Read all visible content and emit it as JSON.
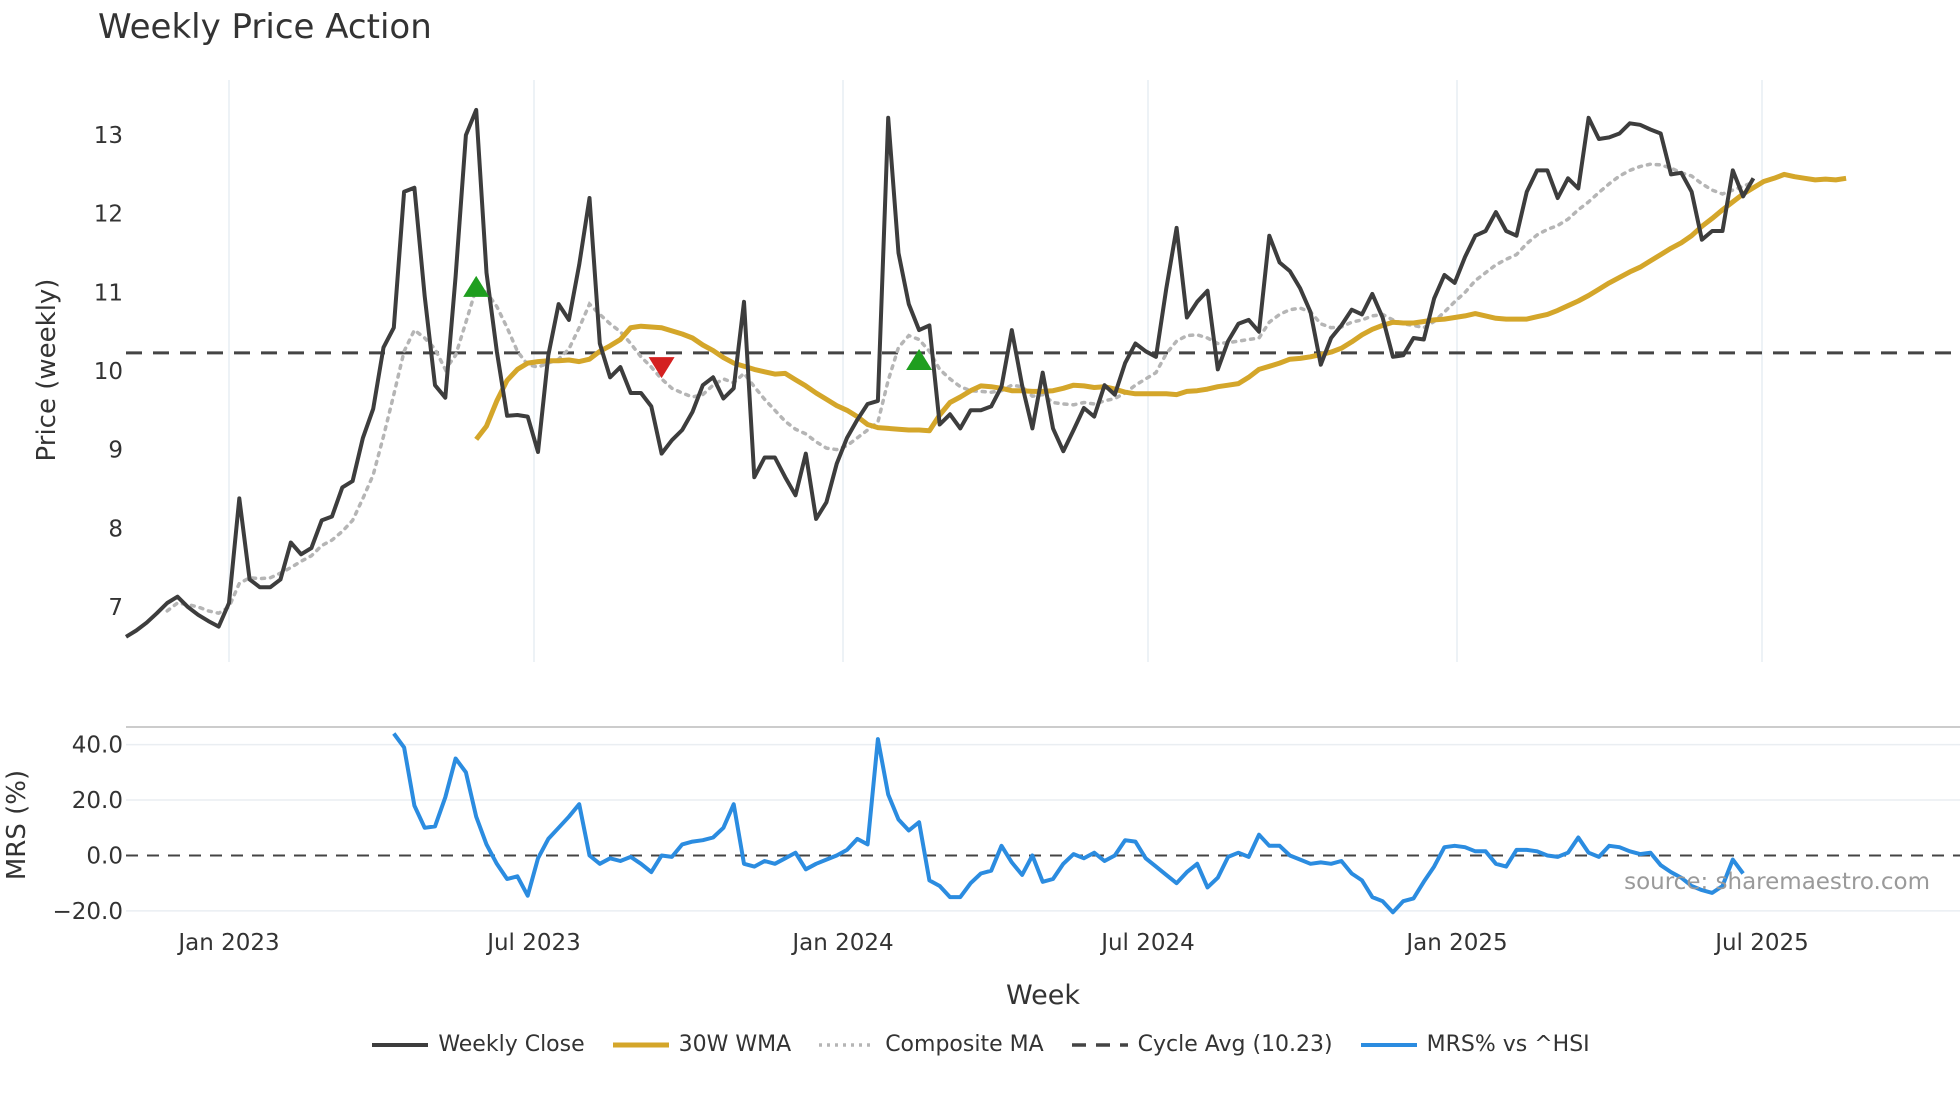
{
  "chart_data": {
    "type": "line",
    "title": "Weekly Price Action",
    "source": "source: sharemaestro.com",
    "xlabel": "Week",
    "x_ticks": [
      "Jan 2023",
      "Jul 2023",
      "Jan 2024",
      "Jul 2024",
      "Jan 2025",
      "Jul 2025"
    ],
    "price_panel": {
      "ylabel": "Price (weekly)",
      "ylim": [
        6.3,
        13.7
      ],
      "y_ticks": [
        "7",
        "8",
        "9",
        "10",
        "11",
        "12",
        "13"
      ],
      "cycle_avg": 10.23
    },
    "mrs_panel": {
      "ylabel": "MRS (%)",
      "ylim": [
        -24,
        46
      ],
      "y_ticks": [
        "−20.0",
        "0.0",
        "20.0",
        "40.0"
      ]
    },
    "series": [
      {
        "name": "Weekly Close",
        "color": "#3d3d3d",
        "values": [
          6.62,
          6.7,
          6.8,
          6.92,
          7.05,
          7.13,
          7.0,
          6.9,
          6.82,
          6.75,
          7.05,
          8.38,
          7.35,
          7.25,
          7.25,
          7.35,
          7.82,
          7.67,
          7.75,
          8.1,
          8.15,
          8.52,
          8.6,
          9.15,
          9.52,
          10.3,
          10.55,
          12.28,
          12.33,
          10.95,
          9.82,
          9.66,
          11.2,
          13.0,
          13.32,
          11.25,
          10.25,
          9.43,
          9.44,
          9.42,
          8.97,
          10.2,
          10.85,
          10.65,
          11.35,
          12.2,
          10.35,
          9.92,
          10.05,
          9.72,
          9.72,
          9.55,
          8.95,
          9.12,
          9.25,
          9.48,
          9.82,
          9.92,
          9.65,
          9.78,
          10.88,
          8.65,
          8.9,
          8.9,
          8.65,
          8.42,
          8.95,
          8.12,
          8.33,
          8.82,
          9.15,
          9.38,
          9.58,
          9.62,
          13.22,
          11.5,
          10.85,
          10.52,
          10.58,
          9.32,
          9.45,
          9.27,
          9.5,
          9.5,
          9.55,
          9.8,
          10.52,
          9.82,
          9.27,
          9.98,
          9.27,
          8.98,
          9.25,
          9.53,
          9.42,
          9.82,
          9.7,
          10.1,
          10.35,
          10.25,
          10.18,
          11.05,
          11.82,
          10.68,
          10.88,
          11.02,
          10.02,
          10.38,
          10.6,
          10.65,
          10.5,
          11.72,
          11.38,
          11.27,
          11.05,
          10.75,
          10.08,
          10.42,
          10.58,
          10.78,
          10.72,
          10.98,
          10.68,
          10.18,
          10.2,
          10.42,
          10.4,
          10.92,
          11.22,
          11.12,
          11.45,
          11.72,
          11.78,
          12.02,
          11.78,
          11.72,
          12.28,
          12.55,
          12.55,
          12.2,
          12.45,
          12.32,
          13.22,
          12.95,
          12.97,
          13.02,
          13.15,
          13.13,
          13.07,
          13.02,
          12.5,
          12.52,
          12.28,
          11.67,
          11.78,
          11.78,
          12.55,
          12.22,
          12.45
        ]
      },
      {
        "name": "30W WMA",
        "color": "#d4a62a",
        "start_index": 34,
        "values": [
          9.13,
          9.3,
          9.62,
          9.88,
          10.02,
          10.1,
          10.12,
          10.13,
          10.13,
          10.14,
          10.12,
          10.15,
          10.25,
          10.32,
          10.4,
          10.55,
          10.57,
          10.56,
          10.55,
          10.51,
          10.47,
          10.42,
          10.33,
          10.26,
          10.17,
          10.1,
          10.06,
          10.02,
          9.99,
          9.96,
          9.97,
          9.89,
          9.81,
          9.72,
          9.64,
          9.56,
          9.5,
          9.42,
          9.32,
          9.28,
          9.27,
          9.26,
          9.25,
          9.25,
          9.24,
          9.44,
          9.6,
          9.67,
          9.75,
          9.81,
          9.8,
          9.78,
          9.75,
          9.75,
          9.74,
          9.74,
          9.75,
          9.78,
          9.82,
          9.81,
          9.79,
          9.8,
          9.77,
          9.73,
          9.71,
          9.71,
          9.71,
          9.71,
          9.7,
          9.74,
          9.75,
          9.77,
          9.8,
          9.82,
          9.84,
          9.92,
          10.02,
          10.06,
          10.1,
          10.15,
          10.16,
          10.18,
          10.21,
          10.24,
          10.29,
          10.37,
          10.46,
          10.53,
          10.58,
          10.62,
          10.61,
          10.61,
          10.63,
          10.65,
          10.66,
          10.68,
          10.7,
          10.73,
          10.7,
          10.67,
          10.66,
          10.66,
          10.66,
          10.69,
          10.72,
          10.77,
          10.83,
          10.89,
          10.96,
          11.04,
          11.12,
          11.19,
          11.26,
          11.32,
          11.4,
          11.48,
          11.56,
          11.63,
          11.72,
          11.84,
          11.94,
          12.05,
          12.15,
          12.25,
          12.33,
          12.41,
          12.45,
          12.5,
          12.47,
          12.45,
          12.43,
          12.44,
          12.43,
          12.45
        ]
      },
      {
        "name": "Composite MA",
        "color": "#b5b5b5",
        "dash": "dotted",
        "values": [
          null,
          null,
          null,
          null,
          6.95,
          7.05,
          7.03,
          7.0,
          6.95,
          6.92,
          7.0,
          7.3,
          7.37,
          7.36,
          7.37,
          7.43,
          7.5,
          7.58,
          7.65,
          7.78,
          7.85,
          7.96,
          8.1,
          8.38,
          8.68,
          9.17,
          9.7,
          10.25,
          10.52,
          10.42,
          10.28,
          10.02,
          10.2,
          10.62,
          11.05,
          11.0,
          10.82,
          10.55,
          10.25,
          10.08,
          10.05,
          10.1,
          10.15,
          10.28,
          10.55,
          10.85,
          10.72,
          10.6,
          10.5,
          10.35,
          10.18,
          10.05,
          9.9,
          9.78,
          9.72,
          9.67,
          9.7,
          9.82,
          9.9,
          9.85,
          9.97,
          9.8,
          9.64,
          9.5,
          9.36,
          9.26,
          9.2,
          9.1,
          9.02,
          9.0,
          9.05,
          9.15,
          9.25,
          9.35,
          9.88,
          10.3,
          10.45,
          10.4,
          10.25,
          10.02,
          9.9,
          9.8,
          9.75,
          9.74,
          9.73,
          9.75,
          9.82,
          9.8,
          9.68,
          9.7,
          9.6,
          9.58,
          9.57,
          9.6,
          9.58,
          9.62,
          9.65,
          9.72,
          9.82,
          9.9,
          9.98,
          10.22,
          10.38,
          10.45,
          10.46,
          10.42,
          10.35,
          10.36,
          10.38,
          10.4,
          10.42,
          10.62,
          10.72,
          10.78,
          10.8,
          10.75,
          10.6,
          10.55,
          10.56,
          10.62,
          10.65,
          10.7,
          10.72,
          10.65,
          10.6,
          10.58,
          10.55,
          10.63,
          10.75,
          10.88,
          11.0,
          11.15,
          11.25,
          11.35,
          11.42,
          11.48,
          11.62,
          11.73,
          11.8,
          11.85,
          11.93,
          12.05,
          12.15,
          12.27,
          12.38,
          12.48,
          12.55,
          12.6,
          12.63,
          12.62,
          12.58,
          12.52,
          12.48,
          12.38,
          12.3,
          12.25,
          12.3,
          12.35,
          12.4
        ]
      },
      {
        "name": "Cycle Avg (10.23)",
        "color": "#444444",
        "dash": "dashed"
      },
      {
        "name": "MRS% vs ^HSI",
        "color": "#2b8ce0",
        "start_index": 26,
        "values": [
          44,
          39,
          18,
          10,
          10.5,
          21,
          35,
          30,
          14,
          4,
          -3,
          -8.5,
          -7.5,
          -14.5,
          -1,
          6,
          10,
          14,
          18.5,
          0,
          -3,
          -1,
          -2,
          -0.5,
          -3,
          -6,
          0,
          -0.5,
          4,
          5,
          5.5,
          6.5,
          10,
          18.5,
          -3,
          -4,
          -2,
          -3,
          -1,
          1,
          -5,
          -3,
          -1.5,
          0,
          2,
          6,
          4,
          42,
          22,
          13,
          9,
          12,
          -9,
          -11,
          -15,
          -15,
          -10,
          -6.5,
          -5.5,
          3.5,
          -2.5,
          -7,
          0,
          -9.5,
          -8.5,
          -3,
          0.5,
          -1,
          1,
          -2,
          0,
          5.5,
          5,
          -1,
          -4,
          -7,
          -10,
          -6,
          -3,
          -11.5,
          -8,
          -0.5,
          1,
          -0.5,
          7.5,
          3.5,
          3.5,
          0,
          -1.5,
          -3,
          -2.5,
          -3,
          -2,
          -6.5,
          -9,
          -15,
          -16.5,
          -20.5,
          -16.5,
          -15.5,
          -9.5,
          -4,
          3,
          3.5,
          3,
          1.5,
          1.5,
          -3,
          -4,
          2,
          2,
          1.5,
          0,
          -0.5,
          1,
          6.5,
          1,
          -0.5,
          3.5,
          3,
          1.5,
          0.5,
          1,
          -3.5,
          -6,
          -8,
          -11,
          -12.5,
          -13.5,
          -11,
          -1.5,
          -6.5
        ]
      }
    ],
    "markers": [
      {
        "type": "buy",
        "symbol": "▲",
        "index": 34,
        "value": 11.07,
        "color": "#1f9e1f"
      },
      {
        "type": "sell",
        "symbol": "▼",
        "index": 52,
        "value": 10.05,
        "color": "#d42020"
      },
      {
        "type": "buy",
        "symbol": "▲",
        "index": 77,
        "value": 10.14,
        "color": "#1f9e1f"
      }
    ]
  }
}
